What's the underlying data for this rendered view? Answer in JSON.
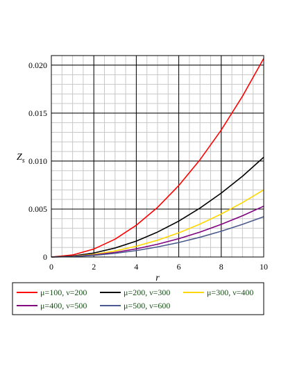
{
  "chart_data": {
    "type": "line",
    "xlabel": "r",
    "ylabel": "Z",
    "ylabel_sub": "s",
    "xlim": [
      0,
      10
    ],
    "ylim": [
      0,
      0.021
    ],
    "x_ticks": [
      0,
      2,
      4,
      6,
      8,
      10
    ],
    "x_tick_labels": [
      "0",
      "2",
      "4",
      "6",
      "8",
      "10"
    ],
    "y_ticks": [
      0,
      0.005,
      0.01,
      0.015,
      0.02
    ],
    "y_tick_labels": [
      "0",
      "0.005",
      "0.010",
      "0.015",
      "0.020"
    ],
    "grid": true,
    "legend_position": "bottom",
    "x": [
      0,
      1,
      2,
      3,
      4,
      5,
      6,
      7,
      8,
      9,
      10
    ],
    "series": [
      {
        "name": "μ=100, ν=200",
        "color": "#ff0000",
        "values": [
          0,
          0.00021,
          0.00083,
          0.00186,
          0.00331,
          0.00517,
          0.00745,
          0.01014,
          0.01324,
          0.01676,
          0.0207
        ]
      },
      {
        "name": "μ=200, ν=300",
        "color": "#000000",
        "values": [
          0,
          0.000104,
          0.000416,
          0.000936,
          0.00166,
          0.0026,
          0.00374,
          0.0051,
          0.00666,
          0.00842,
          0.0104
        ]
      },
      {
        "name": "μ=300, ν=400",
        "color": "#ffd700",
        "values": [
          0,
          7e-05,
          0.00028,
          0.00063,
          0.00112,
          0.00175,
          0.00252,
          0.00343,
          0.00448,
          0.00567,
          0.007
        ]
      },
      {
        "name": "μ=400, ν=500",
        "color": "#800080",
        "values": [
          0,
          5.3e-05,
          0.00021,
          0.00048,
          0.00085,
          0.00133,
          0.00191,
          0.0026,
          0.0034,
          0.0043,
          0.0053
        ]
      },
      {
        "name": "μ=500, ν=600",
        "color": "#4a5a8c",
        "values": [
          0,
          4.2e-05,
          0.000168,
          0.00038,
          0.00067,
          0.00105,
          0.00151,
          0.00206,
          0.00269,
          0.0034,
          0.0042
        ]
      }
    ]
  }
}
